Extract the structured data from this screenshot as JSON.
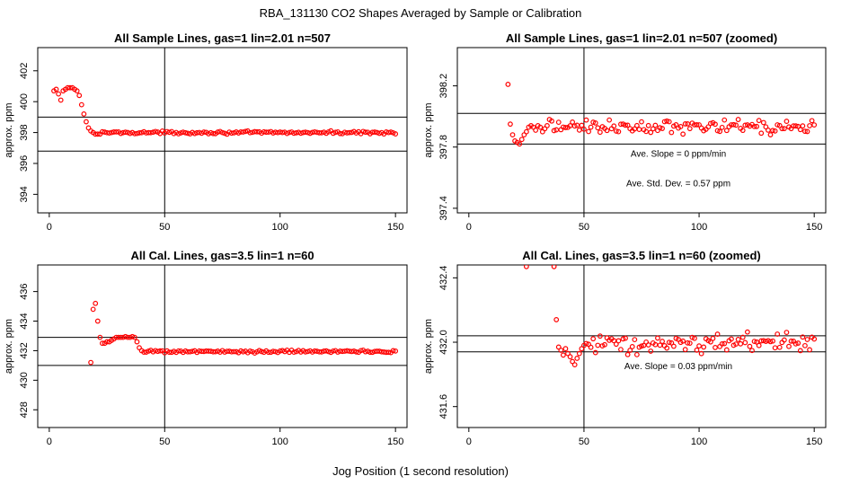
{
  "figure": {
    "title": "RBA_131130  CO2 Shapes Averaged by Sample or Calibration",
    "xlabel": "Jog Position (1 second resolution)"
  },
  "chart_data": [
    {
      "type": "scatter",
      "title": "All Sample Lines, gas=1 lin=2.01 n=507",
      "ylabel": "approx. ppm",
      "xlim": [
        -5,
        155
      ],
      "ylim": [
        392.8,
        403.5
      ],
      "xticks": [
        0,
        50,
        100,
        150
      ],
      "yticks": [
        394,
        396,
        398,
        400,
        402
      ],
      "ytick_labels": [
        "394",
        "396",
        "398",
        "400",
        "402"
      ],
      "hlines": [
        399.0,
        396.8
      ],
      "vline": 50,
      "annotations": [],
      "series": [
        {
          "color": "#ff0000",
          "marker": "open-circle",
          "profile": {
            "x_start": 2,
            "x_end": 150,
            "plateau": 398.0,
            "noise": 0.05,
            "early": [
              [
                2,
                400.7
              ],
              [
                3,
                400.8
              ],
              [
                4,
                400.5
              ],
              [
                5,
                400.1
              ],
              [
                6,
                400.7
              ],
              [
                7,
                400.8
              ],
              [
                8,
                400.9
              ],
              [
                9,
                400.9
              ],
              [
                10,
                400.9
              ],
              [
                11,
                400.8
              ],
              [
                12,
                400.7
              ],
              [
                13,
                400.4
              ],
              [
                14,
                399.8
              ],
              [
                15,
                399.2
              ],
              [
                16,
                398.7
              ],
              [
                17,
                398.3
              ],
              [
                18,
                398.1
              ],
              [
                19,
                398.0
              ],
              [
                20,
                397.9
              ],
              [
                21,
                397.9
              ],
              [
                22,
                397.9
              ]
            ]
          }
        }
      ]
    },
    {
      "type": "scatter",
      "title": "All Sample Lines, gas=1 lin=2.01 n=507 (zoomed)",
      "ylabel": "approx. ppm",
      "xlim": [
        -5,
        155
      ],
      "ylim": [
        397.37,
        398.45
      ],
      "xticks": [
        0,
        50,
        100,
        150
      ],
      "yticks": [
        397.4,
        397.8,
        398.2
      ],
      "ytick_labels": [
        "397.4",
        "397.8",
        "398.2"
      ],
      "hlines": [
        398.02,
        397.82
      ],
      "vline": 50,
      "annotations": [
        "Ave. Slope =  0  ppm/min",
        "Ave. Std. Dev. =  0.57  ppm"
      ],
      "series": [
        {
          "color": "#ff0000",
          "marker": "open-circle",
          "profile": {
            "x_start": 17,
            "x_end": 150,
            "plateau": 397.93,
            "noise": 0.025,
            "early": [
              [
                17,
                398.21
              ],
              [
                18,
                397.95
              ],
              [
                19,
                397.88
              ],
              [
                20,
                397.84
              ],
              [
                21,
                397.83
              ],
              [
                22,
                397.82
              ],
              [
                23,
                397.85
              ],
              [
                24,
                397.88
              ],
              [
                25,
                397.9
              ],
              [
                26,
                397.93
              ],
              [
                27,
                397.94
              ],
              [
                28,
                397.93
              ],
              [
                29,
                397.91
              ],
              [
                30,
                397.94
              ],
              [
                31,
                397.93
              ],
              [
                32,
                397.9
              ],
              [
                33,
                397.92
              ],
              [
                34,
                397.94
              ],
              [
                35,
                397.98
              ],
              [
                36,
                397.97
              ]
            ]
          }
        }
      ]
    },
    {
      "type": "scatter",
      "title": "All Cal. Lines, gas=3.5 lin=1 n=60",
      "ylabel": "approx. ppm",
      "xlim": [
        -5,
        155
      ],
      "ylim": [
        426.8,
        437.8
      ],
      "xticks": [
        0,
        50,
        100,
        150
      ],
      "yticks": [
        428,
        430,
        432,
        434,
        436
      ],
      "ytick_labels": [
        "428",
        "430",
        "432",
        "434",
        "436"
      ],
      "hlines": [
        432.9,
        431.0
      ],
      "vline": 50,
      "annotations": [],
      "series": [
        {
          "color": "#ff0000",
          "marker": "open-circle",
          "profile": {
            "x_start": 18,
            "x_end": 150,
            "plateau": 431.95,
            "noise": 0.06,
            "early": [
              [
                18,
                431.2
              ],
              [
                19,
                434.8
              ],
              [
                20,
                435.2
              ],
              [
                21,
                434.0
              ],
              [
                22,
                432.9
              ],
              [
                23,
                432.5
              ],
              [
                24,
                432.5
              ],
              [
                25,
                432.6
              ],
              [
                26,
                432.6
              ],
              [
                27,
                432.7
              ],
              [
                28,
                432.8
              ],
              [
                29,
                432.9
              ],
              [
                30,
                432.9
              ],
              [
                31,
                432.9
              ],
              [
                32,
                432.9
              ],
              [
                33,
                432.95
              ],
              [
                34,
                432.9
              ],
              [
                35,
                432.9
              ],
              [
                36,
                432.95
              ],
              [
                37,
                432.9
              ],
              [
                38,
                432.6
              ],
              [
                39,
                432.2
              ],
              [
                40,
                432.0
              ],
              [
                41,
                431.9
              ],
              [
                42,
                431.9
              ]
            ]
          }
        }
      ]
    },
    {
      "type": "scatter",
      "title": "All Cal. Lines, gas=3.5 lin=1 n=60 (zoomed)",
      "ylabel": "approx. ppm",
      "xlim": [
        -5,
        155
      ],
      "ylim": [
        431.47,
        432.48
      ],
      "xticks": [
        0,
        50,
        100,
        150
      ],
      "yticks": [
        431.6,
        432.0,
        432.4
      ],
      "ytick_labels": [
        "431.6",
        "432.0",
        "432.4"
      ],
      "hlines": [
        432.04,
        431.94
      ],
      "vline": 50,
      "annotations": [
        "Ave. Slope =  0.03  ppm/min"
      ],
      "series": [
        {
          "color": "#ff0000",
          "marker": "open-circle",
          "profile": {
            "x_start": 38,
            "x_end": 150,
            "plateau": 431.99,
            "noise": 0.035,
            "early": [
              [
                25,
                432.47
              ],
              [
                37,
                432.47
              ],
              [
                38,
                432.14
              ],
              [
                39,
                431.97
              ],
              [
                40,
                431.95
              ],
              [
                41,
                431.92
              ],
              [
                42,
                431.96
              ],
              [
                43,
                431.93
              ],
              [
                44,
                431.91
              ],
              [
                45,
                431.88
              ],
              [
                46,
                431.86
              ],
              [
                47,
                431.9
              ],
              [
                48,
                431.93
              ],
              [
                49,
                431.96
              ],
              [
                50,
                431.98
              ]
            ]
          }
        }
      ]
    }
  ]
}
